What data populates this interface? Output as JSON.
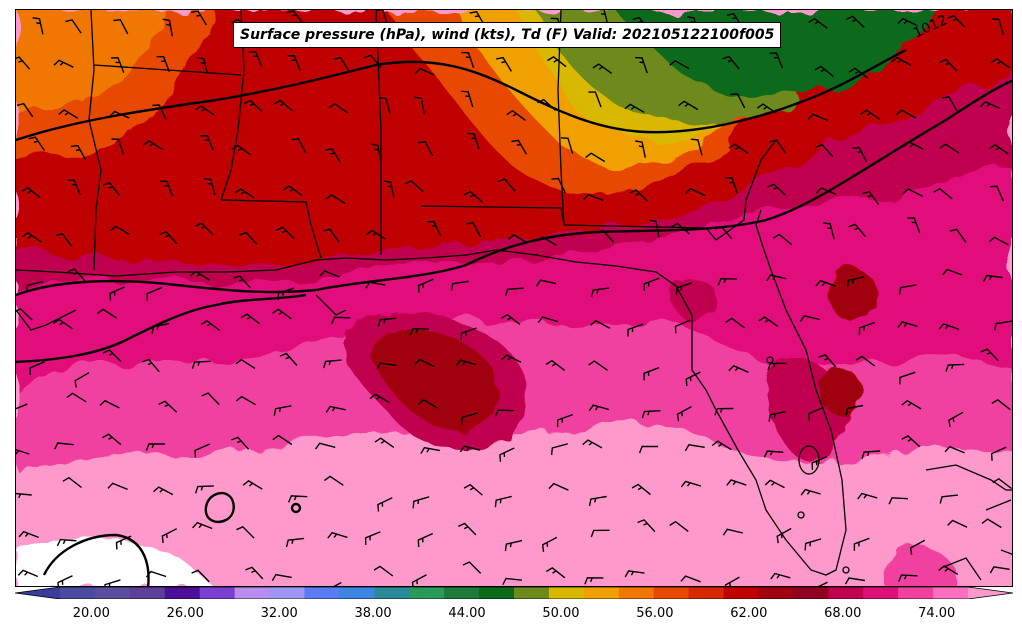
{
  "title": "Surface pressure (hPa), wind (kts), Td (F) Valid: 202105122100f005",
  "contour_label": "1012",
  "colorbar": {
    "tick_labels": [
      "20.00",
      "26.00",
      "32.00",
      "38.00",
      "44.00",
      "50.00",
      "56.00",
      "62.00",
      "68.00",
      "74.00"
    ],
    "colors": [
      "#3b3b9c",
      "#4a4aa0",
      "#5a4f9e",
      "#5b3f99",
      "#4b0f9a",
      "#7a3fd0",
      "#b98cf0",
      "#9d96f2",
      "#5a7cf2",
      "#3a86e0",
      "#2b8a9a",
      "#2a9a5a",
      "#1e7a3a",
      "#0b6a1a",
      "#6e8a1a",
      "#d8b800",
      "#f0a000",
      "#f07800",
      "#e84800",
      "#d82800",
      "#c00000",
      "#a00010",
      "#900020",
      "#c00050",
      "#e0107a",
      "#f040a0",
      "#ff70c0",
      "#ff99cc"
    ]
  },
  "chart_data": {
    "type": "heatmap",
    "title": "Surface pressure (hPa), wind (kts), Td (F) Valid: 202105122100f005",
    "variable": "Td (F)",
    "colorbar_ticks": [
      20,
      26,
      32,
      38,
      44,
      50,
      56,
      62,
      68,
      74
    ],
    "colorbar_range": [
      18,
      76
    ],
    "contour_labels": [
      "1012"
    ]
  }
}
